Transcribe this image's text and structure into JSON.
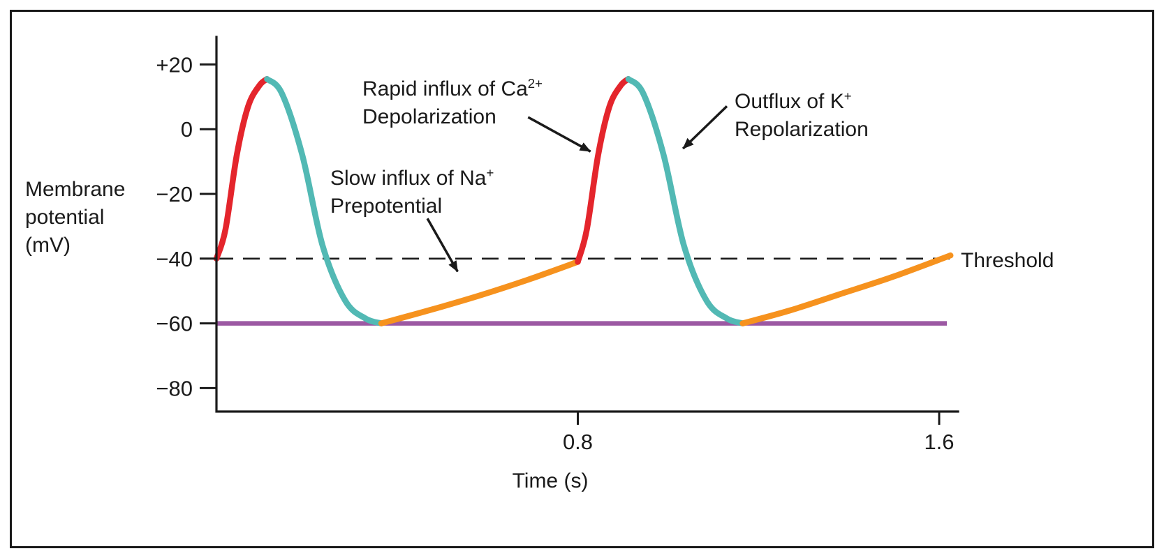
{
  "figure": {
    "background": "#ffffff",
    "border_color": "#1a1a1a",
    "ink_color": "#1a1a1a"
  },
  "chart_data": {
    "type": "line",
    "title": "",
    "xlabel": "Time (s)",
    "ylabel": "Membrane potential (mV)",
    "ylabel_lines": [
      "Membrane",
      "potential",
      "(mV)"
    ],
    "xlim": [
      0,
      1.6
    ],
    "ylim": [
      -80,
      20
    ],
    "grid": false,
    "legend": "none",
    "x_ticks": [
      {
        "value": 0.8,
        "label": "0.8"
      },
      {
        "value": 1.6,
        "label": "1.6"
      }
    ],
    "y_ticks": [
      {
        "value": 20,
        "label": "+20"
      },
      {
        "value": 0,
        "label": "0"
      },
      {
        "value": -20,
        "label": "−20"
      },
      {
        "value": -40,
        "label": "−40"
      },
      {
        "value": -60,
        "label": "−60"
      },
      {
        "value": -80,
        "label": "−80"
      }
    ],
    "threshold": {
      "value": -40,
      "label": "Threshold",
      "style": "dashed",
      "color": "#1a1a1a"
    },
    "baseline": {
      "value": -60,
      "color": "#9c59a3"
    },
    "colors": {
      "depolarization": "#e4252c",
      "repolarization": "#52b9b4",
      "prepotential": "#f6921e"
    },
    "segments": [
      {
        "name": "depolarization-1",
        "phase": "Depolarization (rapid influx of Ca2+)",
        "color": "#e4252c",
        "points": [
          [
            0.0,
            -40
          ],
          [
            0.02,
            -31
          ],
          [
            0.045,
            -8
          ],
          [
            0.07,
            7
          ],
          [
            0.095,
            13.5
          ],
          [
            0.112,
            15.5
          ]
        ]
      },
      {
        "name": "repolarization-1",
        "phase": "Repolarization (outflux of K+)",
        "color": "#52b9b4",
        "points": [
          [
            0.112,
            15.5
          ],
          [
            0.145,
            11
          ],
          [
            0.19,
            -8
          ],
          [
            0.235,
            -36
          ],
          [
            0.285,
            -53
          ],
          [
            0.33,
            -58.5
          ],
          [
            0.365,
            -60
          ]
        ]
      },
      {
        "name": "prepotential-1",
        "phase": "Prepotential (slow influx of Na+)",
        "color": "#f6921e",
        "points": [
          [
            0.365,
            -60
          ],
          [
            0.47,
            -56
          ],
          [
            0.58,
            -51.5
          ],
          [
            0.69,
            -46.5
          ],
          [
            0.8,
            -41
          ]
        ]
      },
      {
        "name": "depolarization-2",
        "phase": "Depolarization (rapid influx of Ca2+)",
        "color": "#e4252c",
        "points": [
          [
            0.8,
            -41
          ],
          [
            0.82,
            -31
          ],
          [
            0.845,
            -8
          ],
          [
            0.87,
            7
          ],
          [
            0.895,
            13.5
          ],
          [
            0.912,
            15.5
          ]
        ]
      },
      {
        "name": "repolarization-2",
        "phase": "Repolarization (outflux of K+)",
        "color": "#52b9b4",
        "points": [
          [
            0.912,
            15.5
          ],
          [
            0.945,
            11
          ],
          [
            0.99,
            -8
          ],
          [
            1.035,
            -36
          ],
          [
            1.085,
            -53
          ],
          [
            1.13,
            -58.5
          ],
          [
            1.165,
            -60
          ]
        ]
      },
      {
        "name": "prepotential-2",
        "phase": "Prepotential (slow influx of Na+)",
        "color": "#f6921e",
        "points": [
          [
            1.165,
            -60
          ],
          [
            1.27,
            -56
          ],
          [
            1.38,
            -51
          ],
          [
            1.5,
            -45.5
          ],
          [
            1.625,
            -39
          ]
        ]
      }
    ],
    "annotations": [
      {
        "id": "ca-influx",
        "line1": "Rapid influx of Ca",
        "line1_sup": "2+",
        "line2": "Depolarization",
        "arrow_from": [
          0.69,
          3.7
        ],
        "arrow_to": [
          0.828,
          -6.9
        ]
      },
      {
        "id": "na-influx",
        "line1": "Slow influx of Na",
        "line1_sup": "+",
        "line2": "Prepotential",
        "arrow_from": [
          0.467,
          -27.6
        ],
        "arrow_to": [
          0.534,
          -44
        ]
      },
      {
        "id": "k-outflux",
        "line1": "Outflux of K",
        "line1_sup": "+",
        "line2": "Repolarization",
        "arrow_from": [
          1.13,
          7.1
        ],
        "arrow_to": [
          1.033,
          -6
        ]
      }
    ]
  }
}
